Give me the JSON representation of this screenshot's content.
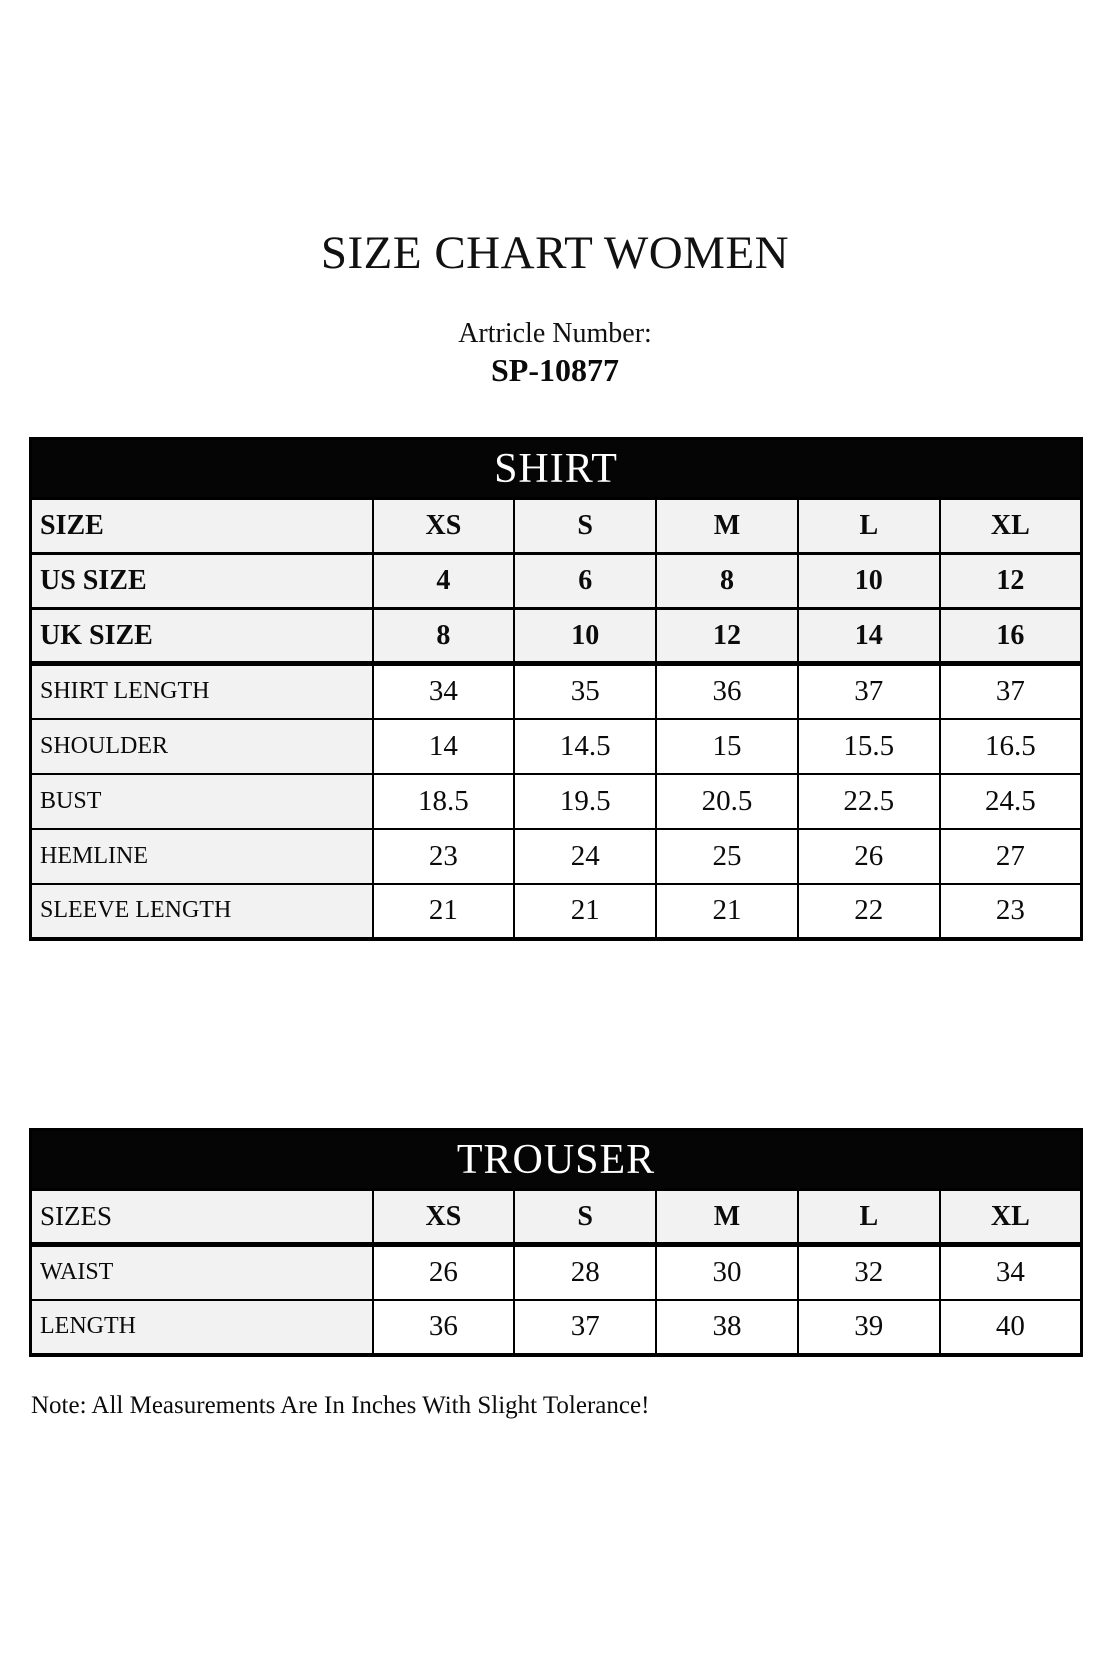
{
  "page": {
    "title": "SIZE CHART WOMEN",
    "article_label": "Artricle Number:",
    "article_number": "SP-10877",
    "note": "Note: All Measurements Are In Inches With Slight Tolerance!"
  },
  "colors": {
    "band_background": "#050505",
    "band_text": "#ffffff",
    "header_cell_background": "#f2f2f2",
    "value_cell_background": "#ffffff",
    "border": "#000000",
    "page_background": "#ffffff"
  },
  "shirt_table": {
    "title": "SHIRT",
    "header_rows": [
      {
        "label": "SIZE",
        "values": [
          "XS",
          "S",
          "M",
          "L",
          "XL"
        ]
      },
      {
        "label": "US SIZE",
        "values": [
          "4",
          "6",
          "8",
          "10",
          "12"
        ]
      },
      {
        "label": "UK SIZE",
        "values": [
          "8",
          "10",
          "12",
          "14",
          "16"
        ]
      }
    ],
    "measure_rows": [
      {
        "label": "SHIRT LENGTH",
        "values": [
          "34",
          "35",
          "36",
          "37",
          "37"
        ]
      },
      {
        "label": "SHOULDER",
        "values": [
          "14",
          "14.5",
          "15",
          "15.5",
          "16.5"
        ]
      },
      {
        "label": "BUST",
        "values": [
          "18.5",
          "19.5",
          "20.5",
          "22.5",
          "24.5"
        ]
      },
      {
        "label": "HEMLINE",
        "values": [
          "23",
          "24",
          "25",
          "26",
          "27"
        ]
      },
      {
        "label": "SLEEVE LENGTH",
        "values": [
          "21",
          "21",
          "21",
          "22",
          "23"
        ]
      }
    ]
  },
  "trouser_table": {
    "title": "TROUSER",
    "header_rows": [
      {
        "label": "SIZES",
        "values": [
          "XS",
          "S",
          "M",
          "L",
          "XL"
        ]
      }
    ],
    "measure_rows": [
      {
        "label": "WAIST",
        "values": [
          "26",
          "28",
          "30",
          "32",
          "34"
        ]
      },
      {
        "label": "LENGTH",
        "values": [
          "36",
          "37",
          "38",
          "39",
          "40"
        ]
      }
    ]
  }
}
